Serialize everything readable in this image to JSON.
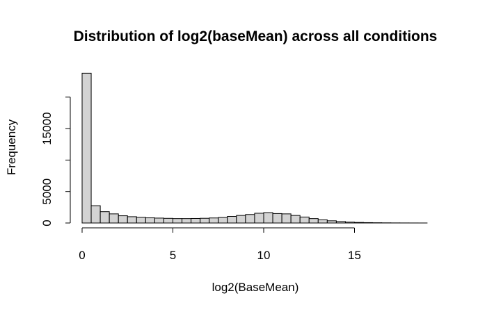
{
  "chart_data": {
    "type": "bar",
    "title": "Distribution of log2(baseMean) across all conditions",
    "xlabel": "log2(BaseMean)",
    "ylabel": "Frequency",
    "bin_width": 0.5,
    "bin_start": 0,
    "xlim": [
      0,
      19
    ],
    "ylim": [
      0,
      24000
    ],
    "x_ticks": [
      0,
      5,
      10,
      15
    ],
    "y_ticks": [
      0,
      5000,
      10000,
      15000,
      20000
    ],
    "y_tick_labels": [
      "0",
      "5000",
      "",
      "15000",
      ""
    ],
    "grid": false,
    "values": [
      23800,
      2750,
      1800,
      1450,
      1150,
      1000,
      900,
      820,
      780,
      740,
      700,
      700,
      720,
      750,
      800,
      880,
      1050,
      1200,
      1350,
      1550,
      1650,
      1500,
      1450,
      1200,
      950,
      700,
      500,
      350,
      230,
      140,
      90,
      60,
      40,
      25,
      15,
      10,
      6,
      3
    ]
  }
}
